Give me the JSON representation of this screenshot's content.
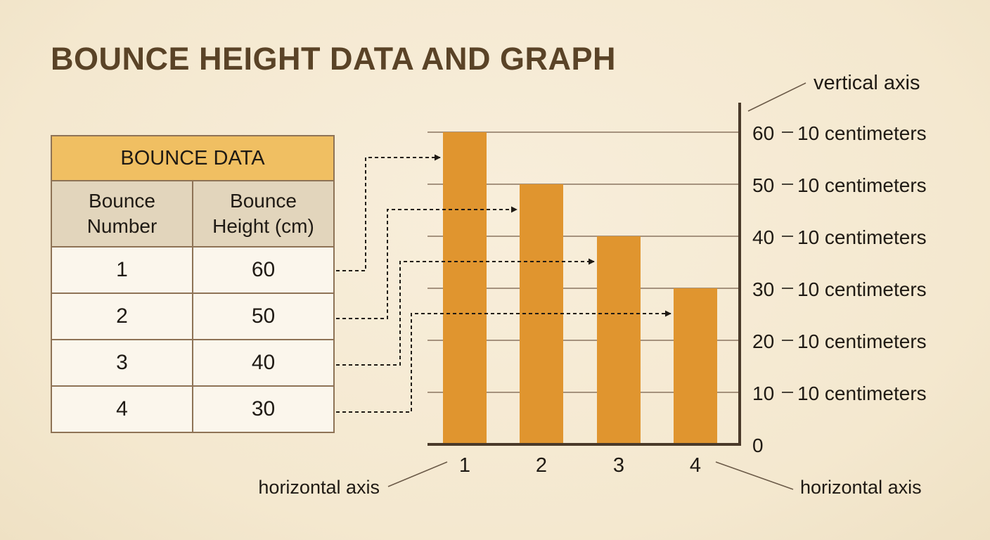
{
  "page": {
    "title": "BOUNCE HEIGHT DATA AND GRAPH"
  },
  "table": {
    "title": "BOUNCE DATA",
    "columns": [
      {
        "line1": "Bounce",
        "line2": "Number"
      },
      {
        "line1": "Bounce",
        "line2": "Height (cm)"
      }
    ],
    "rows": [
      {
        "number": "1",
        "height": "60"
      },
      {
        "number": "2",
        "height": "50"
      },
      {
        "number": "3",
        "height": "40"
      },
      {
        "number": "4",
        "height": "30"
      }
    ]
  },
  "annotations": {
    "vertical_axis": "vertical axis",
    "horizontal_axis_left": "horizontal axis",
    "horizontal_axis_right": "horizontal axis",
    "tick_suffix": "10 centimeters"
  },
  "colors": {
    "bar": "#e0952f",
    "axis": "#4a3a2a",
    "grid": "#8a7560",
    "title": "#5a4327",
    "table_title_bg": "#f0bf62",
    "table_header_bg": "#e2d5bc"
  },
  "chart_data": {
    "type": "bar",
    "categories": [
      "1",
      "2",
      "3",
      "4"
    ],
    "values": [
      60,
      50,
      40,
      30
    ],
    "title": "",
    "xlabel": "",
    "ylabel": "",
    "ylim": [
      0,
      60
    ],
    "yticks": [
      0,
      10,
      20,
      30,
      40,
      50,
      60
    ],
    "yaxis_position": "right",
    "grid": true
  }
}
